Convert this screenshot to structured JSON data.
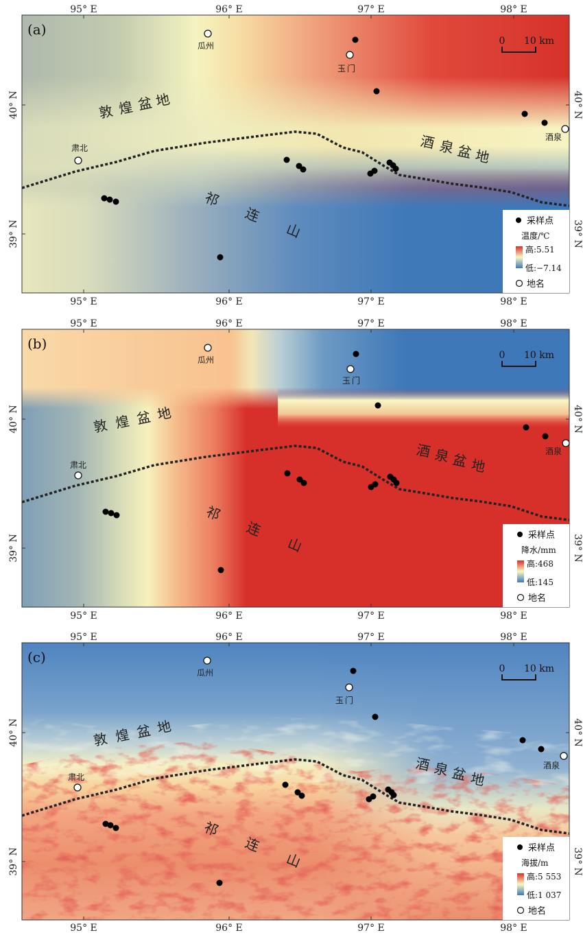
{
  "map_common": {
    "lon_ticks": [
      "95° E",
      "96° E",
      "97° E",
      "98° E"
    ],
    "lat_ticks": [
      "40° N",
      "39° N"
    ],
    "scale_bar": {
      "zero": "0",
      "label": "10 km"
    },
    "regions": {
      "dunhuang": [
        "敦",
        "煌",
        "盆",
        "地"
      ],
      "jiuquan": [
        "酒",
        "泉",
        "盆",
        "地"
      ],
      "qilian": [
        "祁",
        "连",
        "山"
      ]
    },
    "place_names": {
      "guazhou": "瓜州",
      "yumen_line1": "玉",
      "yumen_line2": "门",
      "jiuquan": "酒泉",
      "subei": "肃北"
    },
    "legend": {
      "sample": "采样点",
      "place": "地名"
    },
    "colors": {
      "sample_point": "#000000",
      "boundary": "#222222",
      "high": "#d7302a",
      "mid": "#f8f7c2",
      "low": "#3e78b8"
    }
  },
  "panels": [
    {
      "label": "(a)",
      "variable": "温度/℃",
      "high": "高:5.51",
      "low": "低:−7.14"
    },
    {
      "label": "(b)",
      "variable": "降水/mm",
      "high": "高:468",
      "low": "低:145"
    },
    {
      "label": "(c)",
      "variable": "海拔/m",
      "high": "高:5 553",
      "low": "低:1 037"
    }
  ]
}
